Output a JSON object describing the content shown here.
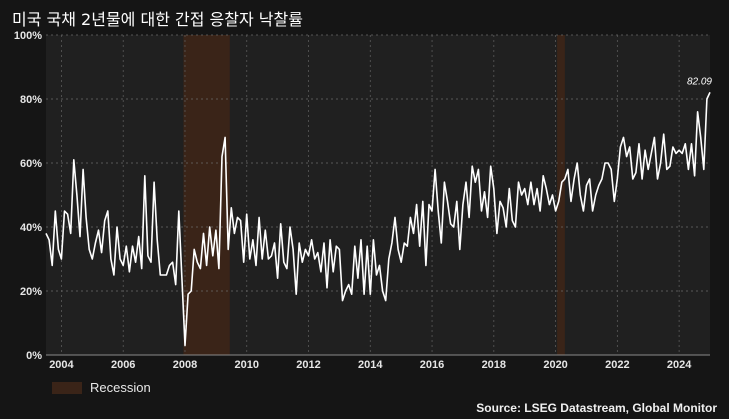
{
  "chart_data": {
    "type": "line",
    "title": "미국 국채 2년물에 대한 간접 응찰자 낙찰률",
    "xlabel": "",
    "ylabel": "",
    "xlim": [
      2003.5,
      2025.0
    ],
    "ylim": [
      0,
      100
    ],
    "x_ticks": [
      {
        "value": 2004,
        "label": "2004"
      },
      {
        "value": 2006,
        "label": "2006"
      },
      {
        "value": 2008,
        "label": "2008"
      },
      {
        "value": 2010,
        "label": "2010"
      },
      {
        "value": 2012,
        "label": "2012"
      },
      {
        "value": 2014,
        "label": "2014"
      },
      {
        "value": 2016,
        "label": "2016"
      },
      {
        "value": 2018,
        "label": "2018"
      },
      {
        "value": 2020,
        "label": "2020"
      },
      {
        "value": 2022,
        "label": "2022"
      },
      {
        "value": 2024,
        "label": "2024"
      }
    ],
    "y_ticks": [
      {
        "value": 0,
        "label": "0%"
      },
      {
        "value": 20,
        "label": "20%"
      },
      {
        "value": 40,
        "label": "40%"
      },
      {
        "value": 60,
        "label": "60%"
      },
      {
        "value": 80,
        "label": "80%"
      },
      {
        "value": 100,
        "label": "100%"
      }
    ],
    "grid": true,
    "recessions": [
      {
        "start": 2007.95,
        "end": 2009.45
      },
      {
        "start": 2020.05,
        "end": 2020.3
      }
    ],
    "legend": {
      "label": "Recession",
      "placement": "bottom-left"
    },
    "last_label": "82.09",
    "source": "Source: LSEG Datastream, Global Monitor",
    "series": [
      {
        "x": [
          2003.5,
          2003.6,
          2003.7,
          2003.8,
          2003.9,
          2004.0,
          2004.1,
          2004.2,
          2004.3,
          2004.4,
          2004.5,
          2004.6,
          2004.7,
          2004.8,
          2004.9,
          2005.0,
          2005.1,
          2005.2,
          2005.3,
          2005.4,
          2005.5,
          2005.6,
          2005.7,
          2005.8,
          2005.9,
          2006.0,
          2006.1,
          2006.2,
          2006.3,
          2006.4,
          2006.5,
          2006.6,
          2006.7,
          2006.8,
          2006.9,
          2007.0,
          2007.1,
          2007.2,
          2007.3,
          2007.4,
          2007.5,
          2007.6,
          2007.7,
          2007.8,
          2007.9,
          2008.0,
          2008.1,
          2008.2,
          2008.3,
          2008.4,
          2008.5,
          2008.6,
          2008.7,
          2008.8,
          2008.9,
          2009.0,
          2009.1,
          2009.2,
          2009.3,
          2009.4,
          2009.5,
          2009.6,
          2009.7,
          2009.8,
          2009.9,
          2010.0,
          2010.1,
          2010.2,
          2010.3,
          2010.4,
          2010.5,
          2010.6,
          2010.7,
          2010.8,
          2010.9,
          2011.0,
          2011.1,
          2011.2,
          2011.3,
          2011.4,
          2011.5,
          2011.6,
          2011.7,
          2011.8,
          2011.9,
          2012.0,
          2012.1,
          2012.2,
          2012.3,
          2012.4,
          2012.5,
          2012.6,
          2012.7,
          2012.8,
          2012.9,
          2013.0,
          2013.1,
          2013.2,
          2013.3,
          2013.4,
          2013.5,
          2013.6,
          2013.7,
          2013.8,
          2013.9,
          2014.0,
          2014.1,
          2014.2,
          2014.3,
          2014.4,
          2014.5,
          2014.6,
          2014.7,
          2014.8,
          2014.9,
          2015.0,
          2015.1,
          2015.2,
          2015.3,
          2015.4,
          2015.5,
          2015.6,
          2015.7,
          2015.8,
          2015.9,
          2016.0,
          2016.1,
          2016.2,
          2016.3,
          2016.4,
          2016.5,
          2016.6,
          2016.7,
          2016.8,
          2016.9,
          2017.0,
          2017.1,
          2017.2,
          2017.3,
          2017.4,
          2017.5,
          2017.6,
          2017.7,
          2017.8,
          2017.9,
          2018.0,
          2018.1,
          2018.2,
          2018.3,
          2018.4,
          2018.5,
          2018.6,
          2018.7,
          2018.8,
          2018.9,
          2019.0,
          2019.1,
          2019.2,
          2019.3,
          2019.4,
          2019.5,
          2019.6,
          2019.7,
          2019.8,
          2019.9,
          2020.0,
          2020.1,
          2020.2,
          2020.3,
          2020.4,
          2020.5,
          2020.6,
          2020.7,
          2020.8,
          2020.9,
          2021.0,
          2021.1,
          2021.2,
          2021.3,
          2021.4,
          2021.5,
          2021.6,
          2021.7,
          2021.8,
          2021.9,
          2022.0,
          2022.1,
          2022.2,
          2022.3,
          2022.4,
          2022.5,
          2022.6,
          2022.7,
          2022.8,
          2022.9,
          2023.0,
          2023.1,
          2023.2,
          2023.3,
          2023.4,
          2023.5,
          2023.6,
          2023.7,
          2023.8,
          2023.9,
          2024.0,
          2024.1,
          2024.2,
          2024.3,
          2024.4,
          2024.5,
          2024.6,
          2024.7,
          2024.8,
          2024.9,
          2025.0
        ],
        "values": [
          38,
          36,
          28,
          45,
          33,
          30,
          45,
          44,
          38,
          61,
          50,
          37,
          58,
          43,
          33,
          30,
          35,
          39,
          32,
          42,
          45,
          30,
          25,
          40,
          30,
          28,
          34,
          26,
          34,
          29,
          37,
          27,
          56,
          31,
          29,
          54,
          36,
          25,
          25,
          25,
          28,
          29,
          22,
          45,
          24,
          3,
          19,
          20,
          33,
          29,
          27,
          38,
          28,
          40,
          31,
          39,
          27,
          62,
          68,
          33,
          46,
          38,
          43,
          42,
          29,
          44,
          30,
          36,
          28,
          43,
          30,
          39,
          30,
          31,
          35,
          24,
          41,
          29,
          27,
          40,
          33,
          19,
          35,
          29,
          33,
          31,
          36,
          30,
          32,
          26,
          35,
          21,
          36,
          26,
          34,
          33,
          17,
          20,
          22,
          19,
          34,
          24,
          36,
          19,
          34,
          19,
          36,
          25,
          28,
          20,
          17,
          30,
          35,
          43,
          33,
          29,
          35,
          34,
          43,
          38,
          47,
          34,
          48,
          28,
          47,
          45,
          58,
          45,
          35,
          54,
          48,
          41,
          40,
          48,
          33,
          47,
          54,
          43,
          59,
          54,
          58,
          45,
          51,
          43,
          59,
          52,
          38,
          48,
          46,
          40,
          52,
          42,
          40,
          54,
          50,
          52,
          47,
          54,
          47,
          52,
          45,
          56,
          52,
          47,
          50,
          45,
          48,
          54,
          55,
          58,
          48,
          55,
          60,
          50,
          45,
          53,
          55,
          45,
          50,
          53,
          55,
          60,
          60,
          58,
          48,
          55,
          65,
          68,
          62,
          65,
          55,
          57,
          66,
          55,
          64,
          58,
          63,
          68,
          55,
          60,
          69,
          58,
          59,
          65,
          63,
          64,
          63,
          66,
          58,
          66,
          56,
          76,
          68,
          58,
          80,
          82.09
        ]
      }
    ]
  }
}
